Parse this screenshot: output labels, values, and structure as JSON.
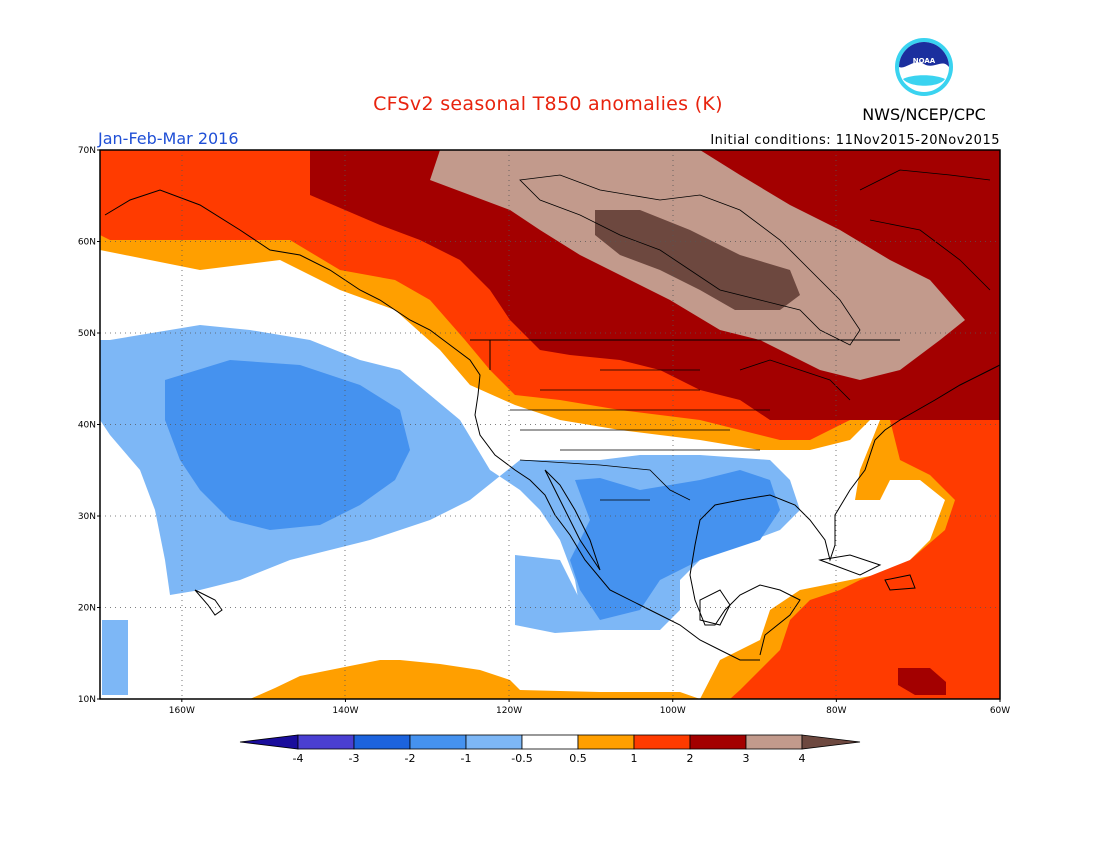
{
  "title": "CFSv2 seasonal T850 anomalies (K)",
  "period": "Jan-Feb-Mar 2016",
  "initial_conditions": "Initial conditions: 11Nov2015-20Nov2015",
  "agency": "NWS/NCEP/CPC",
  "logo_text": "NOAA",
  "map": {
    "lat_labels": [
      "70N",
      "60N",
      "50N",
      "40N",
      "30N",
      "20N",
      "10N"
    ],
    "lon_labels": [
      "160W",
      "140W",
      "120W",
      "100W",
      "80W",
      "60W"
    ],
    "lat_range": [
      10,
      70
    ],
    "lon_range": [
      -170,
      -60
    ]
  },
  "legend": {
    "tick_labels": [
      "-4",
      "-3",
      "-2",
      "-1",
      "-0.5",
      "0.5",
      "1",
      "2",
      "3",
      "4"
    ],
    "colors": [
      "#1a0d9c",
      "#4a3fd2",
      "#1c63dd",
      "#4592ef",
      "#7db7f6",
      "#ffffff",
      "#ff9f00",
      "#ff3b00",
      "#a30000",
      "#c29a8c",
      "#6d483f"
    ]
  }
}
